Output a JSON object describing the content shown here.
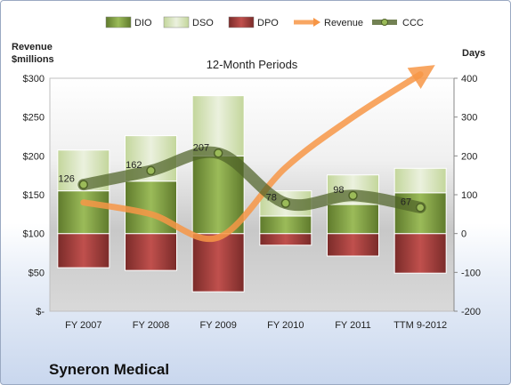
{
  "company": "Syneron Medical",
  "chart_data": {
    "type": "bar",
    "title": "12-Month Periods",
    "ylabel_left": [
      "Revenue",
      "$millions"
    ],
    "ylabel_right": "Days",
    "categories": [
      "FY 2007",
      "FY 2008",
      "FY 2009",
      "FY 2010",
      "FY 2011",
      "TTM 9-2012"
    ],
    "left_axis": {
      "range": [
        0,
        300
      ],
      "ticks": [
        0,
        50,
        100,
        150,
        200,
        250,
        300
      ],
      "tick_labels": [
        "$-",
        "$50",
        "$100",
        "$150",
        "$200",
        "$250",
        "$300"
      ]
    },
    "right_axis": {
      "range": [
        -200,
        400
      ],
      "ticks": [
        -200,
        -100,
        0,
        100,
        200,
        300,
        400
      ],
      "tick_labels": [
        "-200",
        "-100",
        "0",
        "100",
        "200",
        "300",
        "400"
      ]
    },
    "legend": {
      "position": "top",
      "items": [
        "DIO",
        "DSO",
        "DPO",
        "Revenue",
        "CCC"
      ]
    },
    "series": [
      {
        "name": "DIO",
        "kind": "bar",
        "axis": "right",
        "color": "#76933c",
        "values": [
          110,
          135,
          200,
          45,
          75,
          105
        ]
      },
      {
        "name": "DSO",
        "kind": "bar-stacked-on-DIO",
        "axis": "right",
        "color": "#d7e4bd",
        "values": [
          105,
          117,
          155,
          65,
          76,
          63
        ]
      },
      {
        "name": "DPO",
        "kind": "bar-below-zero",
        "axis": "right",
        "color": "#953735",
        "values": [
          -88,
          -95,
          -150,
          -30,
          -58,
          -102
        ]
      },
      {
        "name": "Revenue",
        "kind": "line",
        "axis": "left",
        "color": "#f79646",
        "values": [
          140,
          125,
          95,
          185,
          250,
          305
        ]
      },
      {
        "name": "CCC",
        "kind": "line",
        "axis": "right",
        "color": "#4f6228",
        "values": [
          126,
          162,
          207,
          78,
          98,
          67
        ],
        "data_labels": [
          "126",
          "162",
          "207",
          "78",
          "98",
          "67"
        ]
      }
    ],
    "grid": false
  }
}
